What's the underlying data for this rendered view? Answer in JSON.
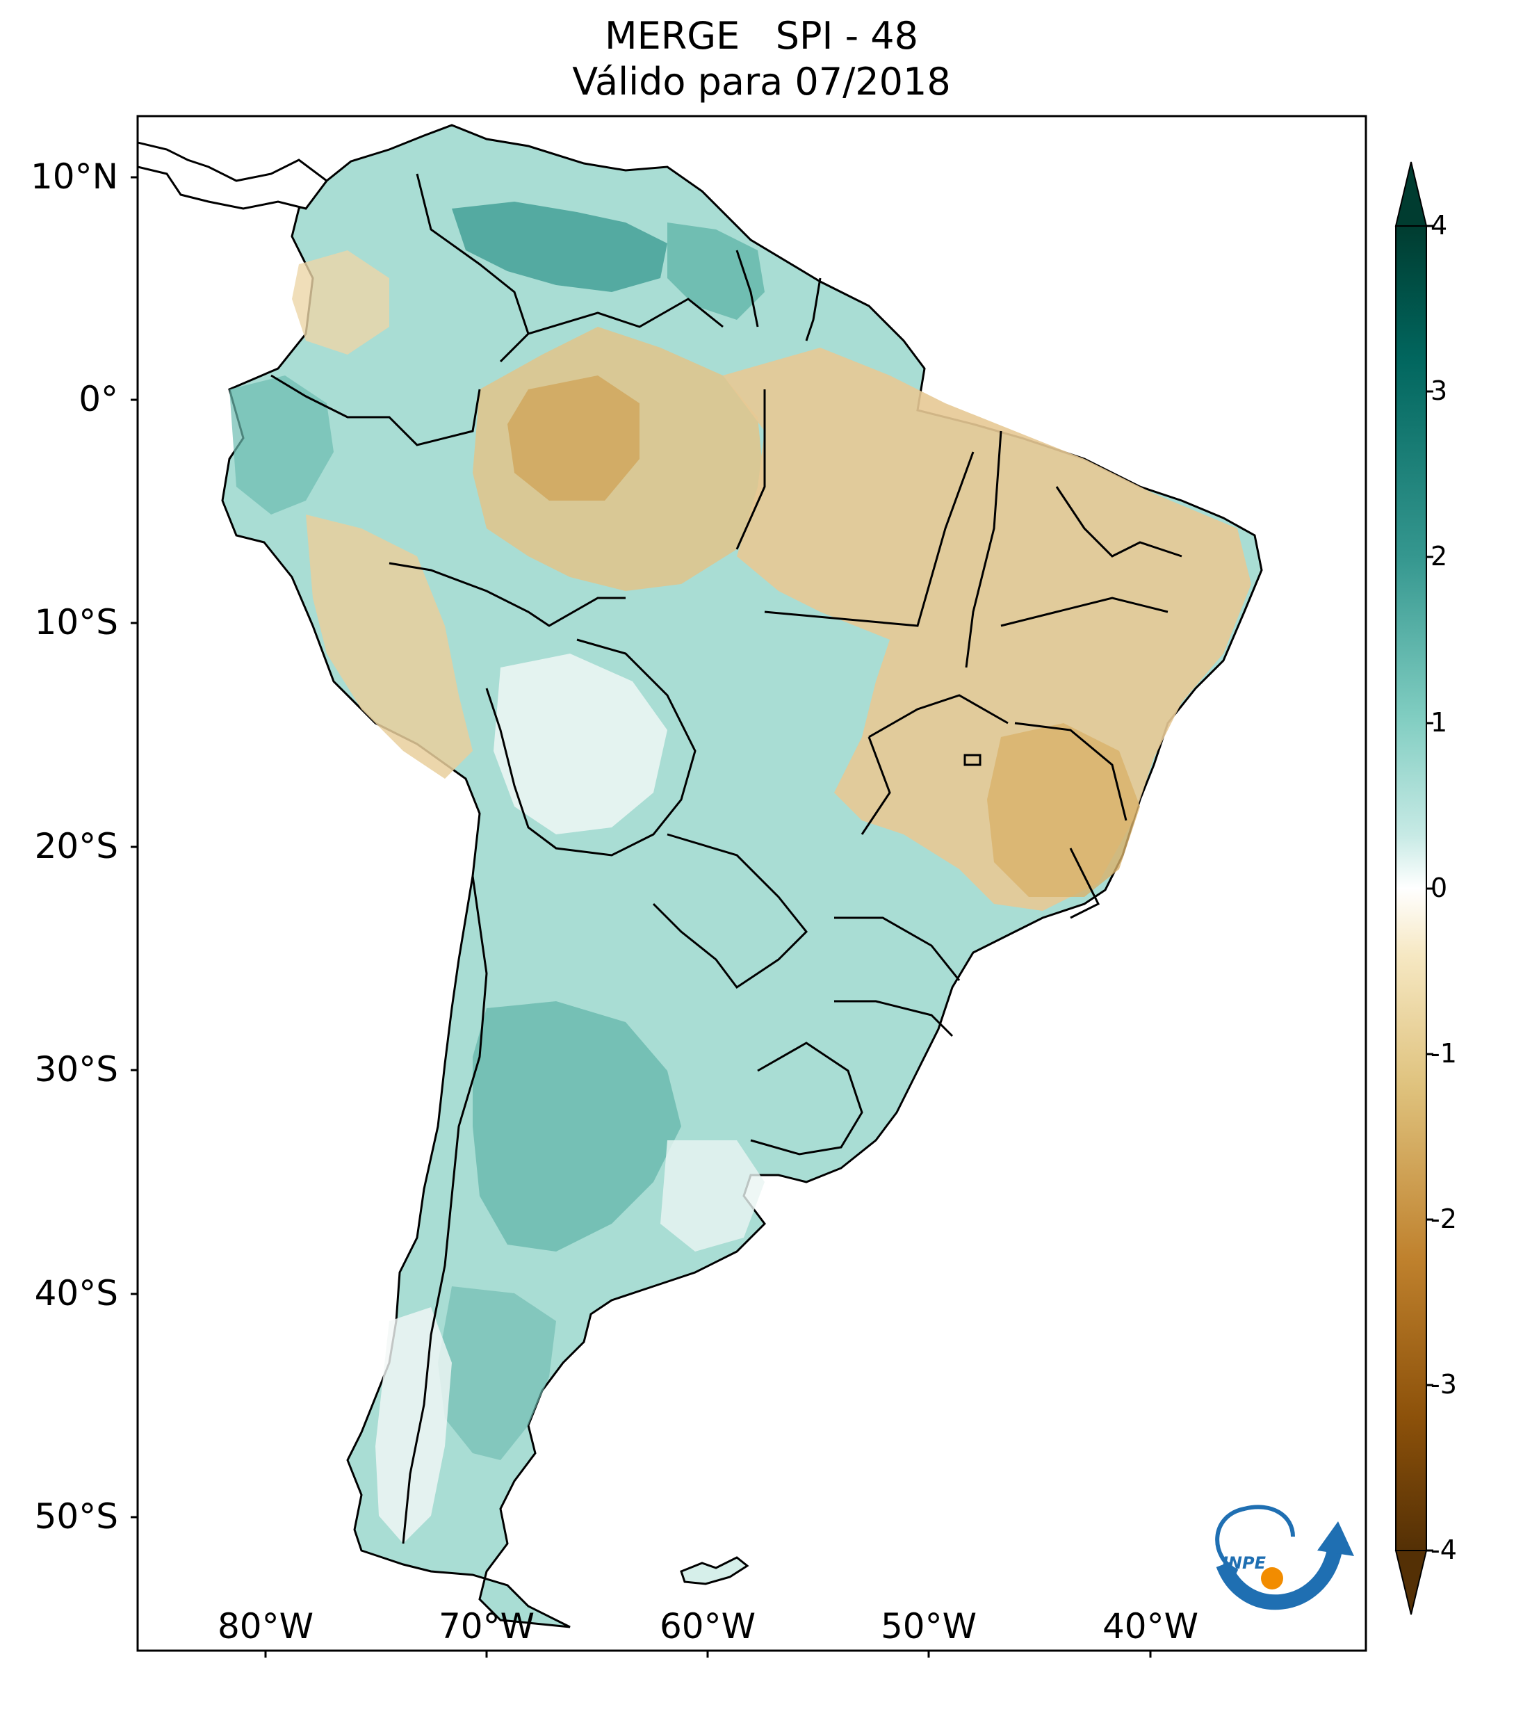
{
  "title": {
    "line1": "MERGE   SPI - 48",
    "line2": "Válido para 07/2018"
  },
  "lat_ticks": [
    "10°N",
    "0°",
    "10°S",
    "20°S",
    "30°S",
    "40°S",
    "50°S"
  ],
  "lon_ticks": [
    "80°W",
    "70°W",
    "60°W",
    "50°W",
    "40°W"
  ],
  "colorbar": {
    "labels": [
      "4",
      "3",
      "2",
      "1",
      "0",
      "-1",
      "-2",
      "-3",
      "-4"
    ],
    "colors": [
      "#003c30",
      "#01665e",
      "#35978f",
      "#80cdc1",
      "#c7eae5",
      "#ffffff",
      "#f6e8c3",
      "#dfc27d",
      "#bf812d",
      "#8c510a",
      "#543005"
    ]
  },
  "logo": {
    "text": "INPE",
    "colors": {
      "blue": "#1f6fb2",
      "orange": "#f28c00"
    }
  }
}
